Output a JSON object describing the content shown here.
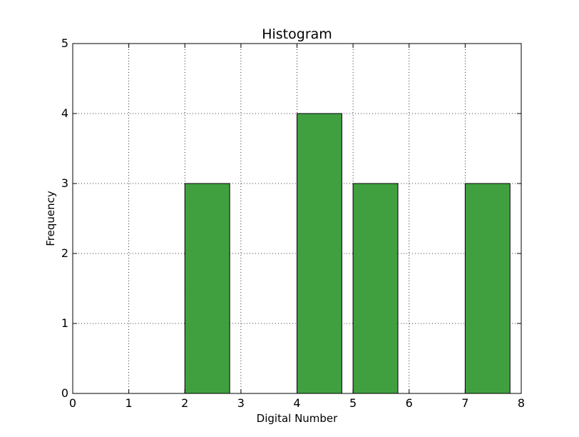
{
  "chart_data": {
    "type": "bar",
    "title": "Histogram",
    "xlabel": "Digital Number",
    "ylabel": "Frequency",
    "xlim": [
      0,
      8
    ],
    "ylim": [
      0,
      5
    ],
    "xticks": [
      "0",
      "1",
      "2",
      "3",
      "4",
      "5",
      "6",
      "7",
      "8"
    ],
    "yticks": [
      "0",
      "1",
      "2",
      "3",
      "4",
      "5"
    ],
    "grid": true,
    "bar_color": "#40a040",
    "bins": [
      {
        "x0": 0,
        "x1": 0.8,
        "count": 0
      },
      {
        "x0": 1,
        "x1": 1.8,
        "count": 0
      },
      {
        "x0": 2,
        "x1": 2.8,
        "count": 3
      },
      {
        "x0": 3,
        "x1": 3.8,
        "count": 0
      },
      {
        "x0": 4,
        "x1": 4.8,
        "count": 4
      },
      {
        "x0": 5,
        "x1": 5.8,
        "count": 3
      },
      {
        "x0": 6,
        "x1": 6.8,
        "count": 0
      },
      {
        "x0": 7,
        "x1": 7.8,
        "count": 3
      }
    ]
  }
}
